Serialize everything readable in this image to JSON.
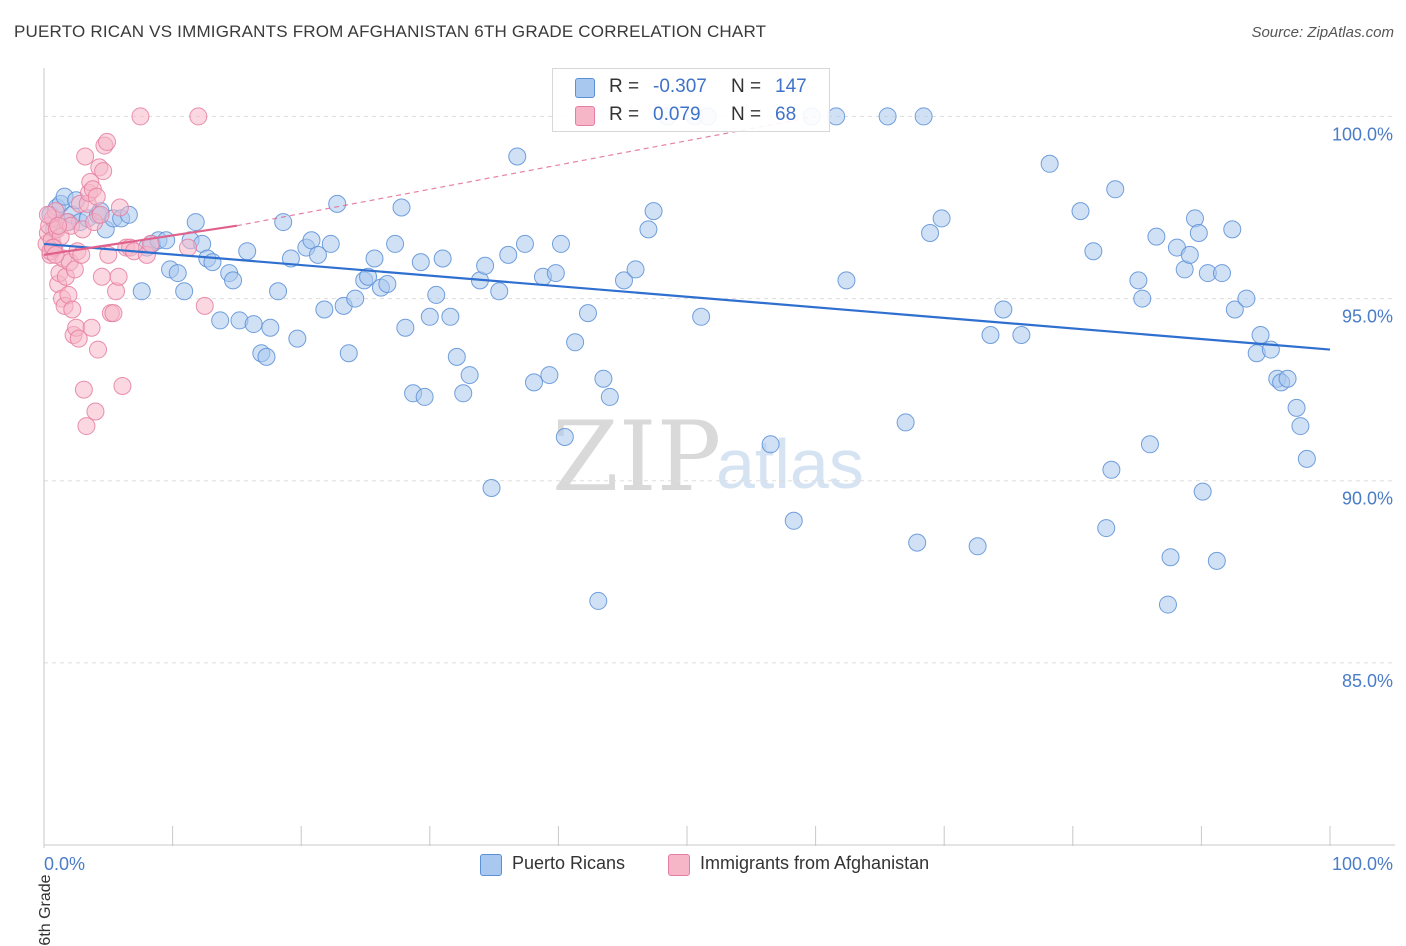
{
  "title": "PUERTO RICAN VS IMMIGRANTS FROM AFGHANISTAN 6TH GRADE CORRELATION CHART",
  "source": "Source: ZipAtlas.com",
  "watermark": {
    "zip": "ZIP",
    "atlas": "atlas"
  },
  "colors": {
    "blue_fill": "#a9c8ef",
    "blue_stroke": "#5b8fd6",
    "blue_line": "#2f6fcf",
    "pink_fill": "#f6b6c8",
    "pink_stroke": "#e57ea0",
    "pink_line": "#e0628c",
    "tick_text": "#4a7cc7",
    "grid": "#dddddd"
  },
  "legend_top": [
    {
      "swatch": "blue",
      "r_label": "R =",
      "r_value": "-0.307",
      "n_label": "N =",
      "n_value": "147"
    },
    {
      "swatch": "pink",
      "r_label": "R =",
      "r_value": "0.079",
      "n_label": "N =",
      "n_value": "68"
    }
  ],
  "legend_bottom": [
    {
      "swatch": "blue",
      "label": "Puerto Ricans"
    },
    {
      "swatch": "pink",
      "label": "Immigrants from Afghanistan"
    }
  ],
  "chart_data": {
    "type": "scatter",
    "title": "PUERTO RICAN VS IMMIGRANTS FROM AFGHANISTAN 6TH GRADE CORRELATION CHART",
    "xlabel": "",
    "ylabel": "6th Grade",
    "xlim": [
      0,
      100
    ],
    "ylim": [
      80.0,
      101.0
    ],
    "x_tick_labels": [
      {
        "value": 0,
        "label": "0.0%"
      },
      {
        "value": 100,
        "label": "100.0%"
      }
    ],
    "y_tick_labels": [
      {
        "value": 100,
        "label": "100.0%"
      },
      {
        "value": 95,
        "label": "95.0%"
      },
      {
        "value": 90,
        "label": "90.0%"
      },
      {
        "value": 85,
        "label": "85.0%"
      }
    ],
    "grid": true,
    "series": [
      {
        "name": "Puerto Ricans",
        "color": "blue",
        "trend": {
          "x": [
            0,
            100
          ],
          "y": [
            96.5,
            93.6
          ],
          "style": "solid"
        },
        "points": [
          [
            0.5,
            97.3
          ],
          [
            0.8,
            96.9
          ],
          [
            1.0,
            97.5
          ],
          [
            1.3,
            97.6
          ],
          [
            1.6,
            97.8
          ],
          [
            1.9,
            97.1
          ],
          [
            2.2,
            97.3
          ],
          [
            2.5,
            97.7
          ],
          [
            2.8,
            97.1
          ],
          [
            3.4,
            97.2
          ],
          [
            4.2,
            97.3
          ],
          [
            4.4,
            97.4
          ],
          [
            4.8,
            96.9
          ],
          [
            5.4,
            97.2
          ],
          [
            6.0,
            97.2
          ],
          [
            6.6,
            97.3
          ],
          [
            7.6,
            95.2
          ],
          [
            8.0,
            96.4
          ],
          [
            8.4,
            96.5
          ],
          [
            8.9,
            96.6
          ],
          [
            9.5,
            96.6
          ],
          [
            9.8,
            95.8
          ],
          [
            10.4,
            95.7
          ],
          [
            10.9,
            95.2
          ],
          [
            11.4,
            96.6
          ],
          [
            11.8,
            97.1
          ],
          [
            12.3,
            96.5
          ],
          [
            12.7,
            96.1
          ],
          [
            13.1,
            96.0
          ],
          [
            13.7,
            94.4
          ],
          [
            14.4,
            95.7
          ],
          [
            14.7,
            95.5
          ],
          [
            15.2,
            94.4
          ],
          [
            15.8,
            96.3
          ],
          [
            16.3,
            94.3
          ],
          [
            16.9,
            93.5
          ],
          [
            17.3,
            93.4
          ],
          [
            17.6,
            94.2
          ],
          [
            18.2,
            95.2
          ],
          [
            18.6,
            97.1
          ],
          [
            19.2,
            96.1
          ],
          [
            19.7,
            93.9
          ],
          [
            20.4,
            96.4
          ],
          [
            20.8,
            96.6
          ],
          [
            21.3,
            96.2
          ],
          [
            21.8,
            94.7
          ],
          [
            22.3,
            96.5
          ],
          [
            22.8,
            97.6
          ],
          [
            23.3,
            94.8
          ],
          [
            23.7,
            93.5
          ],
          [
            24.2,
            95.0
          ],
          [
            24.9,
            95.5
          ],
          [
            25.2,
            95.6
          ],
          [
            25.7,
            96.1
          ],
          [
            26.2,
            95.3
          ],
          [
            26.7,
            95.4
          ],
          [
            27.3,
            96.5
          ],
          [
            27.8,
            97.5
          ],
          [
            28.1,
            94.2
          ],
          [
            28.7,
            92.4
          ],
          [
            29.3,
            96.0
          ],
          [
            29.6,
            92.3
          ],
          [
            30.0,
            94.5
          ],
          [
            30.5,
            95.1
          ],
          [
            31.0,
            96.1
          ],
          [
            31.6,
            94.5
          ],
          [
            32.1,
            93.4
          ],
          [
            32.6,
            92.4
          ],
          [
            33.1,
            92.9
          ],
          [
            33.9,
            95.5
          ],
          [
            34.3,
            95.9
          ],
          [
            34.8,
            89.8
          ],
          [
            35.4,
            95.2
          ],
          [
            36.1,
            96.2
          ],
          [
            36.8,
            98.9
          ],
          [
            37.4,
            96.5
          ],
          [
            38.1,
            92.7
          ],
          [
            38.8,
            95.6
          ],
          [
            39.3,
            92.9
          ],
          [
            39.8,
            95.7
          ],
          [
            40.2,
            96.5
          ],
          [
            40.5,
            91.2
          ],
          [
            41.3,
            93.8
          ],
          [
            42.3,
            94.6
          ],
          [
            43.1,
            86.7
          ],
          [
            43.5,
            92.8
          ],
          [
            44.0,
            92.3
          ],
          [
            45.1,
            95.5
          ],
          [
            46.0,
            95.8
          ],
          [
            47.0,
            96.9
          ],
          [
            47.4,
            97.4
          ],
          [
            48.5,
            100.0
          ],
          [
            50.6,
            100.0
          ],
          [
            51.1,
            94.5
          ],
          [
            51.6,
            100.0
          ],
          [
            56.5,
            91.0
          ],
          [
            58.3,
            88.9
          ],
          [
            59.7,
            100.0
          ],
          [
            61.6,
            100.0
          ],
          [
            62.4,
            95.5
          ],
          [
            65.6,
            100.0
          ],
          [
            67.0,
            91.6
          ],
          [
            67.9,
            88.3
          ],
          [
            68.4,
            100.0
          ],
          [
            68.9,
            96.8
          ],
          [
            69.8,
            97.2
          ],
          [
            72.6,
            88.2
          ],
          [
            73.6,
            94.0
          ],
          [
            74.6,
            94.7
          ],
          [
            76.0,
            94.0
          ],
          [
            78.2,
            98.7
          ],
          [
            80.6,
            97.4
          ],
          [
            81.6,
            96.3
          ],
          [
            82.6,
            88.7
          ],
          [
            83.0,
            90.3
          ],
          [
            83.3,
            98.0
          ],
          [
            85.1,
            95.5
          ],
          [
            85.4,
            95.0
          ],
          [
            86.0,
            91.0
          ],
          [
            86.5,
            96.7
          ],
          [
            87.4,
            86.6
          ],
          [
            87.6,
            87.9
          ],
          [
            88.1,
            96.4
          ],
          [
            88.7,
            95.8
          ],
          [
            89.1,
            96.2
          ],
          [
            89.5,
            97.2
          ],
          [
            89.8,
            96.8
          ],
          [
            90.1,
            89.7
          ],
          [
            90.5,
            95.7
          ],
          [
            91.2,
            87.8
          ],
          [
            91.6,
            95.7
          ],
          [
            92.4,
            96.9
          ],
          [
            92.6,
            94.7
          ],
          [
            93.5,
            95.0
          ],
          [
            94.3,
            93.5
          ],
          [
            94.6,
            94.0
          ],
          [
            95.4,
            93.6
          ],
          [
            95.9,
            92.8
          ],
          [
            96.2,
            92.7
          ],
          [
            96.7,
            92.8
          ],
          [
            97.4,
            92.0
          ],
          [
            97.7,
            91.5
          ],
          [
            98.2,
            90.6
          ]
        ]
      },
      {
        "name": "Immigrants from Afghanistan",
        "color": "pink",
        "trend": {
          "x": [
            0,
            15
          ],
          "y": [
            96.2,
            97.0
          ],
          "style": "solid",
          "extended_x": [
            15,
            60
          ],
          "extended_y": [
            97.0,
            100.0
          ],
          "extended_style": "dashed"
        },
        "points": [
          [
            0.2,
            96.5
          ],
          [
            0.3,
            96.8
          ],
          [
            0.4,
            97.0
          ],
          [
            0.5,
            96.2
          ],
          [
            0.6,
            96.6
          ],
          [
            0.7,
            97.2
          ],
          [
            0.8,
            96.4
          ],
          [
            0.9,
            97.4
          ],
          [
            1.0,
            96.9
          ],
          [
            1.1,
            95.4
          ],
          [
            1.2,
            95.7
          ],
          [
            1.3,
            96.7
          ],
          [
            1.4,
            95.0
          ],
          [
            1.5,
            96.1
          ],
          [
            1.6,
            94.8
          ],
          [
            1.7,
            95.6
          ],
          [
            1.8,
            97.1
          ],
          [
            1.9,
            95.1
          ],
          [
            2.0,
            96.0
          ],
          [
            2.1,
            97.0
          ],
          [
            2.2,
            94.7
          ],
          [
            2.3,
            94.0
          ],
          [
            2.4,
            95.8
          ],
          [
            2.5,
            94.2
          ],
          [
            2.6,
            96.3
          ],
          [
            2.7,
            93.9
          ],
          [
            2.8,
            97.6
          ],
          [
            2.9,
            96.2
          ],
          [
            3.0,
            96.9
          ],
          [
            3.1,
            92.5
          ],
          [
            3.2,
            98.9
          ],
          [
            3.3,
            91.5
          ],
          [
            3.4,
            97.6
          ],
          [
            3.5,
            97.9
          ],
          [
            3.6,
            98.2
          ],
          [
            3.7,
            94.2
          ],
          [
            3.8,
            98.0
          ],
          [
            3.9,
            97.1
          ],
          [
            4.0,
            91.9
          ],
          [
            4.1,
            97.8
          ],
          [
            4.2,
            93.6
          ],
          [
            4.3,
            98.6
          ],
          [
            4.4,
            97.3
          ],
          [
            4.5,
            95.6
          ],
          [
            4.6,
            98.5
          ],
          [
            4.7,
            99.2
          ],
          [
            4.9,
            99.3
          ],
          [
            5.0,
            96.2
          ],
          [
            5.2,
            94.6
          ],
          [
            5.4,
            94.6
          ],
          [
            5.6,
            95.2
          ],
          [
            5.8,
            95.6
          ],
          [
            5.9,
            97.5
          ],
          [
            6.1,
            92.6
          ],
          [
            6.4,
            96.4
          ],
          [
            6.7,
            96.4
          ],
          [
            7.0,
            96.3
          ],
          [
            7.5,
            100.0
          ],
          [
            8.0,
            96.2
          ],
          [
            8.3,
            96.5
          ],
          [
            11.2,
            96.4
          ],
          [
            12.0,
            100.0
          ],
          [
            12.5,
            94.8
          ],
          [
            0.3,
            97.3
          ],
          [
            0.5,
            96.3
          ],
          [
            0.7,
            96.4
          ],
          [
            0.9,
            96.2
          ],
          [
            1.1,
            97.0
          ]
        ]
      }
    ]
  }
}
